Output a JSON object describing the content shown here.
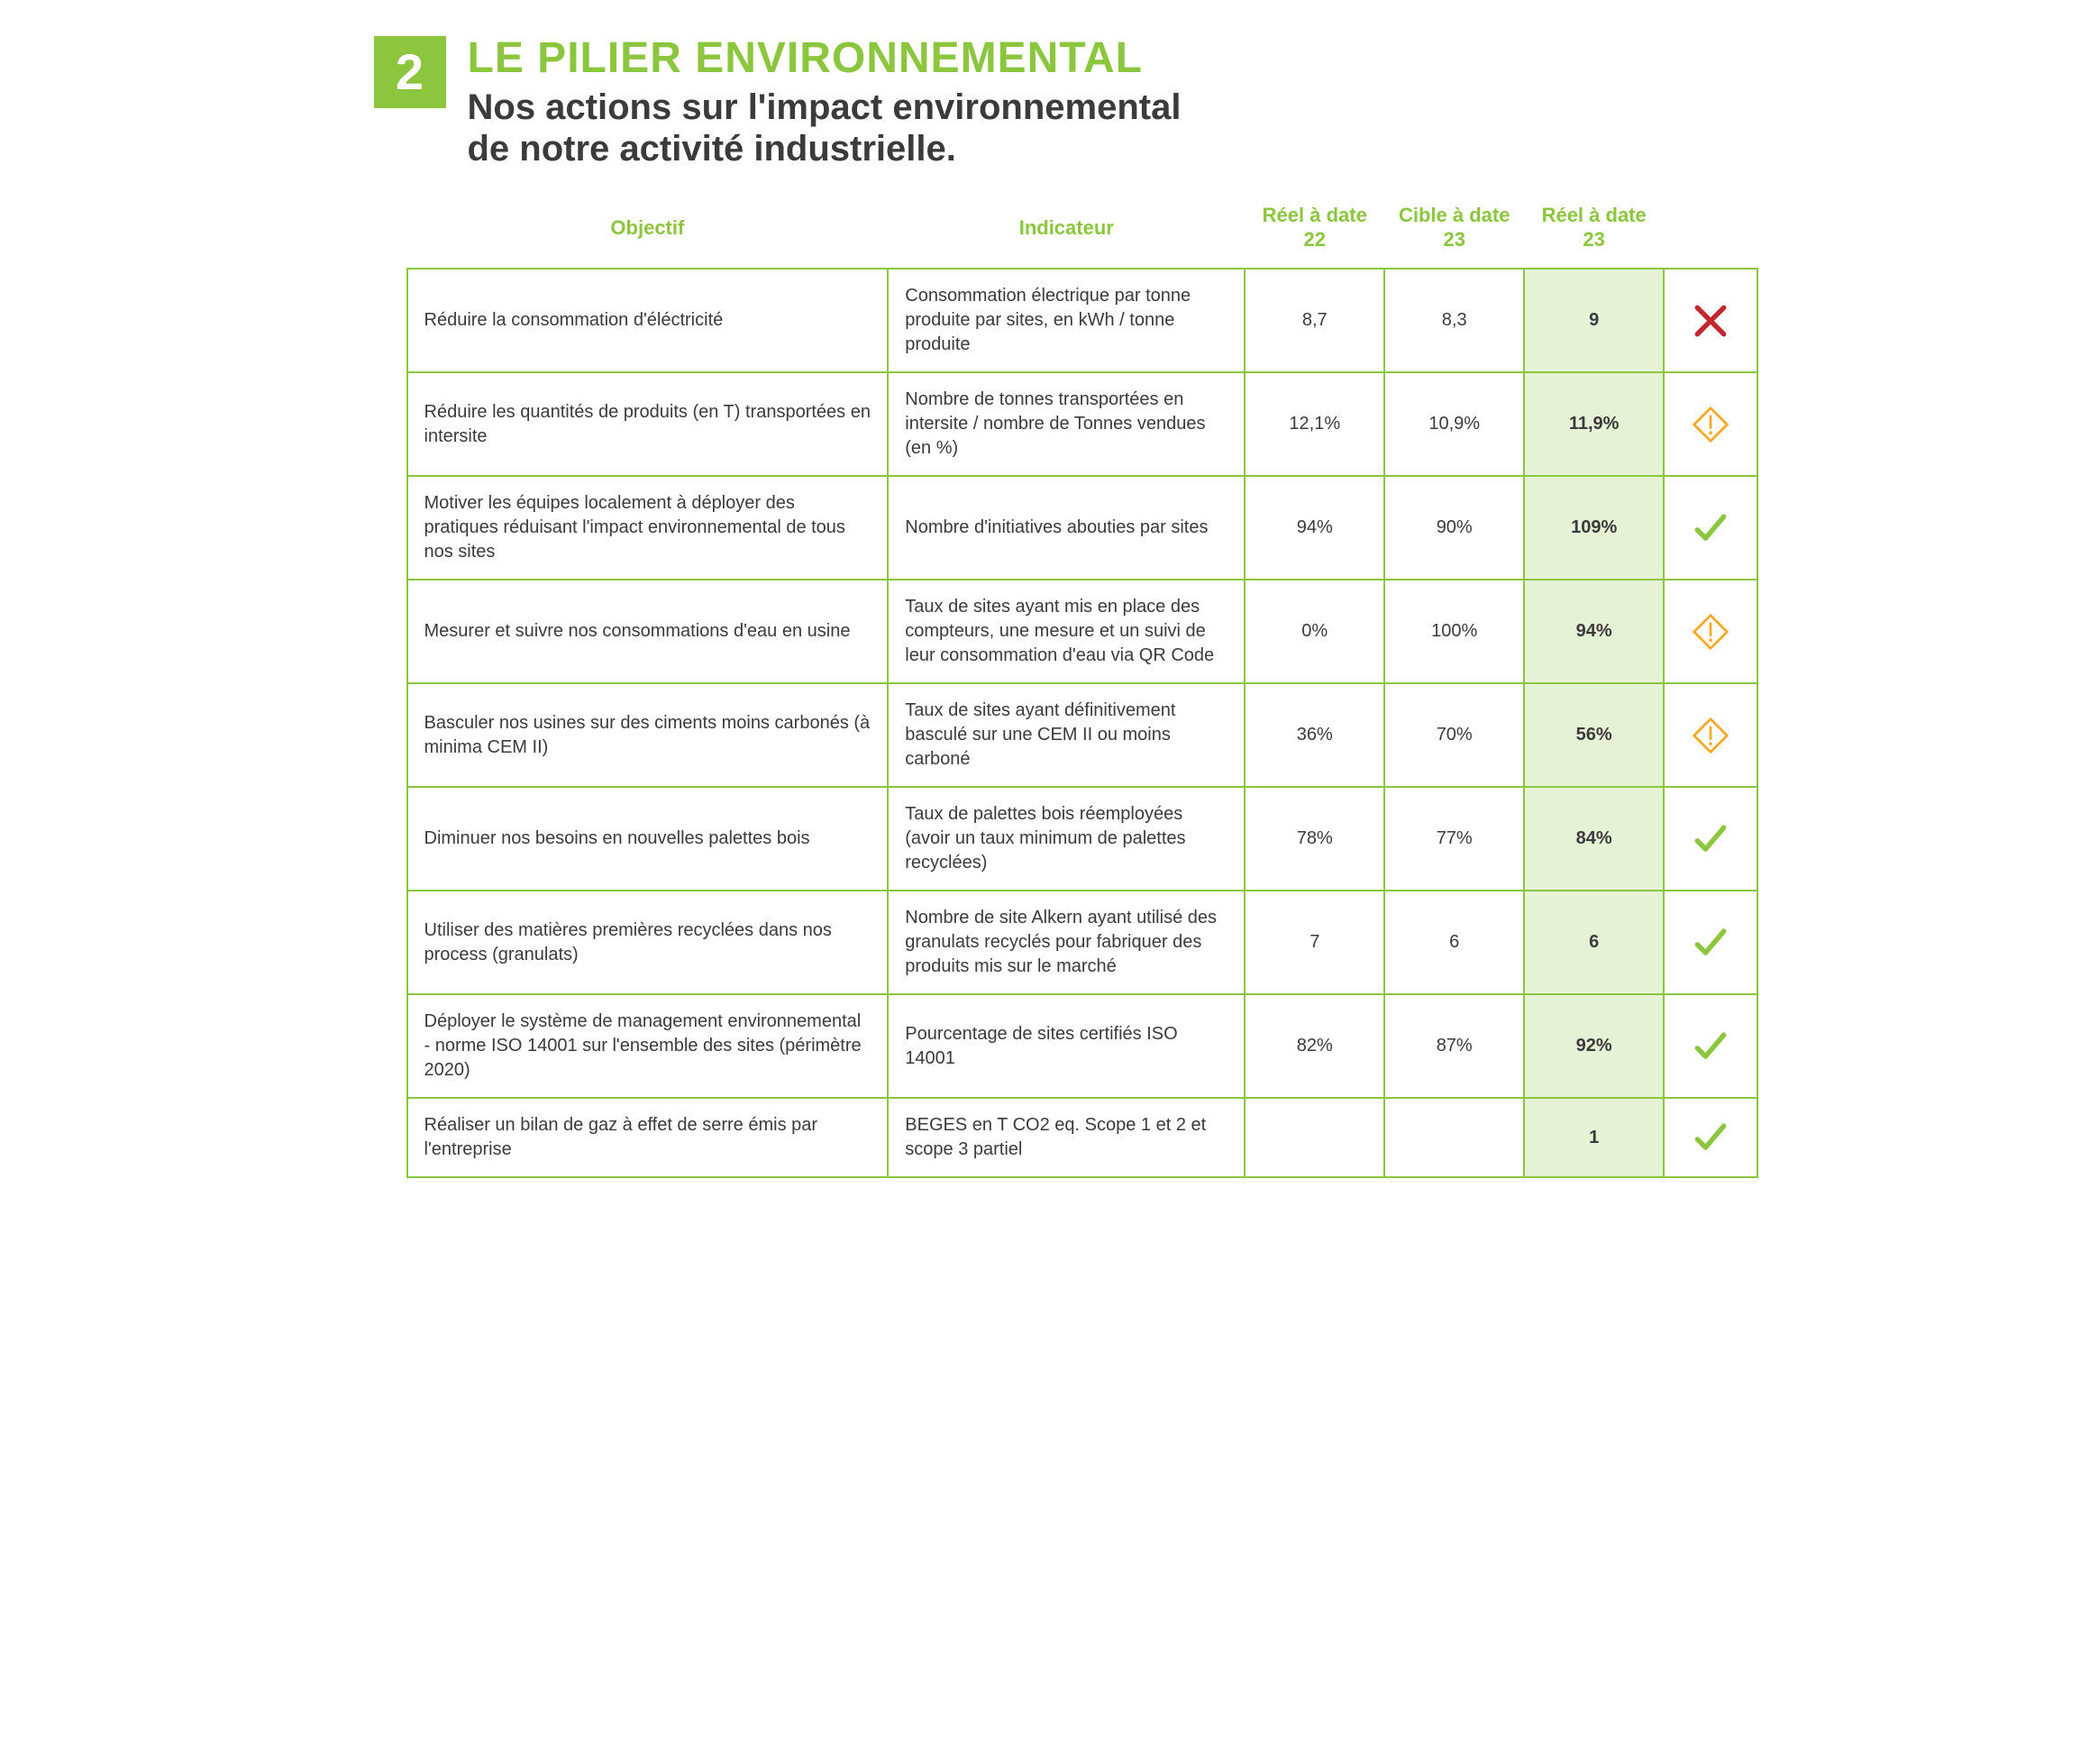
{
  "section_number": "2",
  "main_title": "LE PILIER ENVIRONNEMENTAL",
  "subtitle_line1": "Nos actions sur l'impact environnemental",
  "subtitle_line2": "de notre activité industrielle.",
  "colors": {
    "accent_green": "#8cc63f",
    "text_gray": "#3b3b3b",
    "highlight_bg": "#e6f2d5",
    "cross_red": "#c1272d",
    "warn_orange": "#f7a823",
    "check_green": "#8cc63f",
    "border_green": "#8cc63f"
  },
  "table": {
    "headers": {
      "objectif": "Objectif",
      "indicateur": "Indicateur",
      "reel22": "Réel à date 22",
      "cible23": "Cible à date 23",
      "reel23": "Réel à date 23"
    },
    "rows": [
      {
        "objectif": "Réduire la consommation d'éléctricité",
        "indicateur": "Consommation électrique par tonne produite par sites, en kWh / tonne produite",
        "reel22": "8,7",
        "cible23": "8,3",
        "reel23": "9",
        "status": "cross"
      },
      {
        "objectif": "Réduire les quantités de produits (en T) transportées en intersite",
        "indicateur": "Nombre de tonnes transportées en intersite / nombre de Tonnes vendues (en %)",
        "reel22": "12,1%",
        "cible23": "10,9%",
        "reel23": "11,9%",
        "status": "warn"
      },
      {
        "objectif": "Motiver les équipes localement à déployer des pratiques réduisant l'impact environnemental de tous nos sites",
        "indicateur": "Nombre d'initiatives abouties par sites",
        "reel22": "94%",
        "cible23": "90%",
        "reel23": "109%",
        "status": "check"
      },
      {
        "objectif": "Mesurer et suivre nos consommations d'eau en usine",
        "indicateur": "Taux de sites ayant mis en place des compteurs, une mesure et un suivi de leur consommation d'eau via QR Code",
        "reel22": "0%",
        "cible23": "100%",
        "reel23": "94%",
        "status": "warn"
      },
      {
        "objectif": "Basculer nos usines sur des ciments moins carbonés (à minima CEM II)",
        "indicateur": "Taux de sites ayant définitivement basculé sur une CEM II ou moins carboné",
        "reel22": "36%",
        "cible23": "70%",
        "reel23": "56%",
        "status": "warn"
      },
      {
        "objectif": "Diminuer nos besoins en nouvelles palettes bois",
        "indicateur": "Taux de palettes bois réemployées (avoir un taux minimum de palettes recyclées)",
        "reel22": "78%",
        "cible23": "77%",
        "reel23": "84%",
        "status": "check"
      },
      {
        "objectif": "Utiliser des matières premières recyclées dans nos process (granulats)",
        "indicateur": "Nombre de site Alkern ayant utilisé des granulats recyclés pour fabriquer des produits mis sur le marché",
        "reel22": "7",
        "cible23": "6",
        "reel23": "6",
        "status": "check"
      },
      {
        "objectif": "Déployer le système de management environnemental - norme ISO 14001 sur l'ensemble des sites (périmètre 2020)",
        "indicateur": "Pourcentage de sites certifiés ISO 14001",
        "reel22": "82%",
        "cible23": "87%",
        "reel23": "92%",
        "status": "check"
      },
      {
        "objectif": "Réaliser un bilan de gaz à effet de serre émis par l'entreprise",
        "indicateur": "BEGES  en T CO2 eq. Scope 1 et 2 et scope 3 partiel",
        "reel22": "",
        "cible23": "",
        "reel23": "1",
        "status": "check"
      }
    ]
  }
}
